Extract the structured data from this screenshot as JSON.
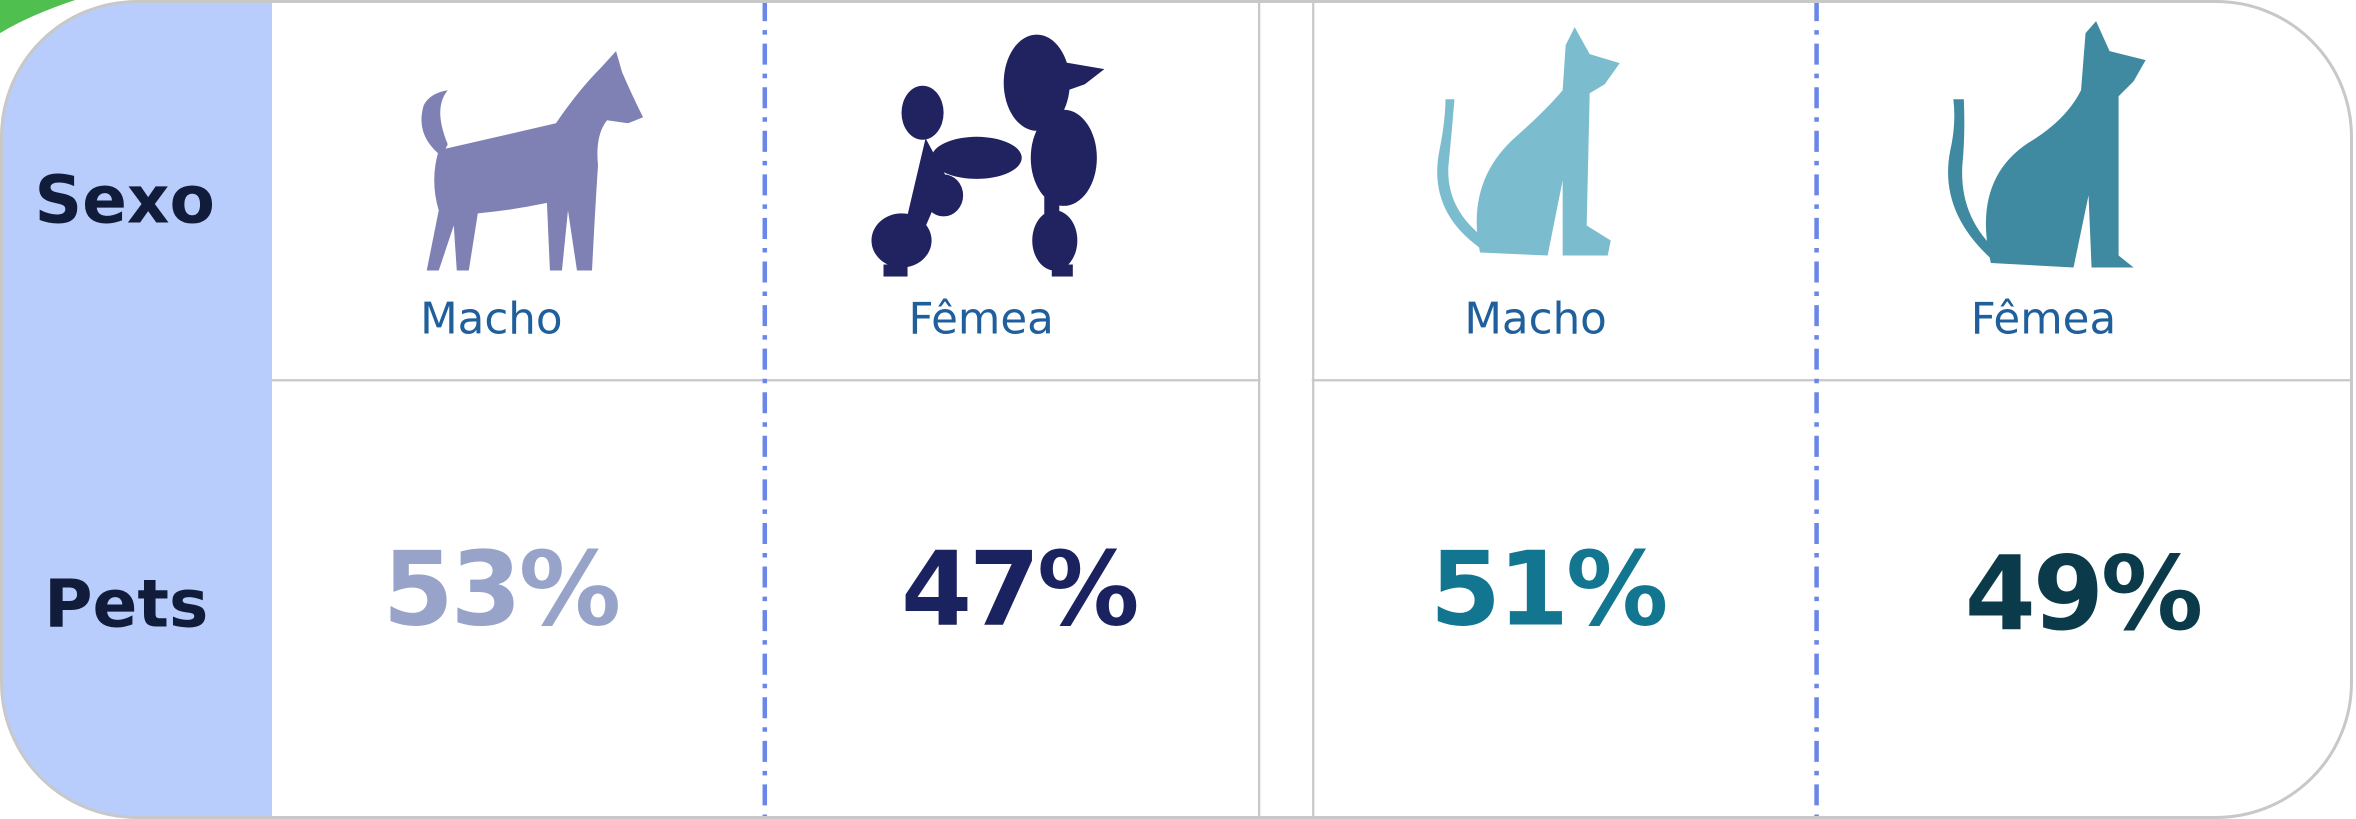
{
  "rows": [
    "Sexo",
    "Pets"
  ],
  "columns": [
    {
      "label": "Macho",
      "value": "53%"
    },
    {
      "label": "Fêmea",
      "value": "47%"
    },
    {
      "label": "Macho",
      "value": "51%"
    },
    {
      "label": "Fêmea",
      "value": "49%"
    }
  ]
}
